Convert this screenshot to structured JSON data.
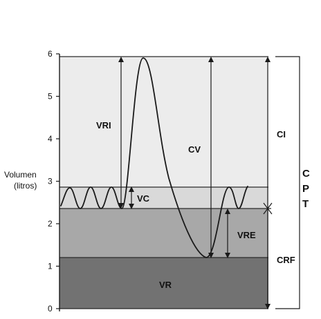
{
  "colors": {
    "zone_irv": "#ececec",
    "zone_tv": "#d9d9d9",
    "zone_erv": "#a8a8a8",
    "zone_rv": "#727272",
    "line": "#1a1a1a"
  },
  "axis": {
    "title_line1": "Volumen",
    "title_line2": "(litros)",
    "ticks": [
      "0",
      "1",
      "2",
      "3",
      "4",
      "5",
      "6"
    ]
  },
  "labels": {
    "vri": "VRI",
    "vc": "VC",
    "cv": "CV",
    "vre": "VRE",
    "vr": "VR",
    "ci": "CI",
    "crf": "CRF",
    "cpt_c": "C",
    "cpt_p": "P",
    "cpt_t": "T"
  },
  "levels_litres": {
    "rv_top": 1.2,
    "frc": 2.3,
    "tidal_top": 2.85,
    "tlc": 5.8
  }
}
